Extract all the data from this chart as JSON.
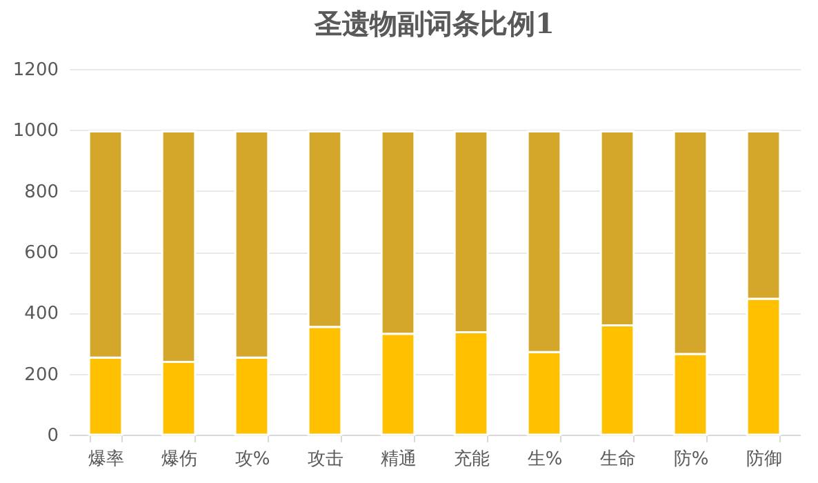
{
  "chart_data": {
    "type": "bar",
    "title": "圣遗物副词条比例1",
    "categories": [
      "爆率",
      "爆伤",
      "攻%",
      "攻击",
      "精通",
      "充能",
      "生%",
      "生命",
      "防%",
      "防御"
    ],
    "stacked": true,
    "series": [
      {
        "color": "#ffc000",
        "values": [
          253,
          239,
          253,
          354,
          331,
          336,
          271,
          359,
          265,
          446
        ]
      },
      {
        "color": "#d4a62a",
        "values": [
          742,
          756,
          742,
          641,
          664,
          659,
          724,
          636,
          730,
          549
        ]
      }
    ],
    "ylim": [
      0,
      1200
    ],
    "yticks": [
      0,
      200,
      400,
      600,
      800,
      1000,
      1200
    ],
    "grid": "y"
  }
}
